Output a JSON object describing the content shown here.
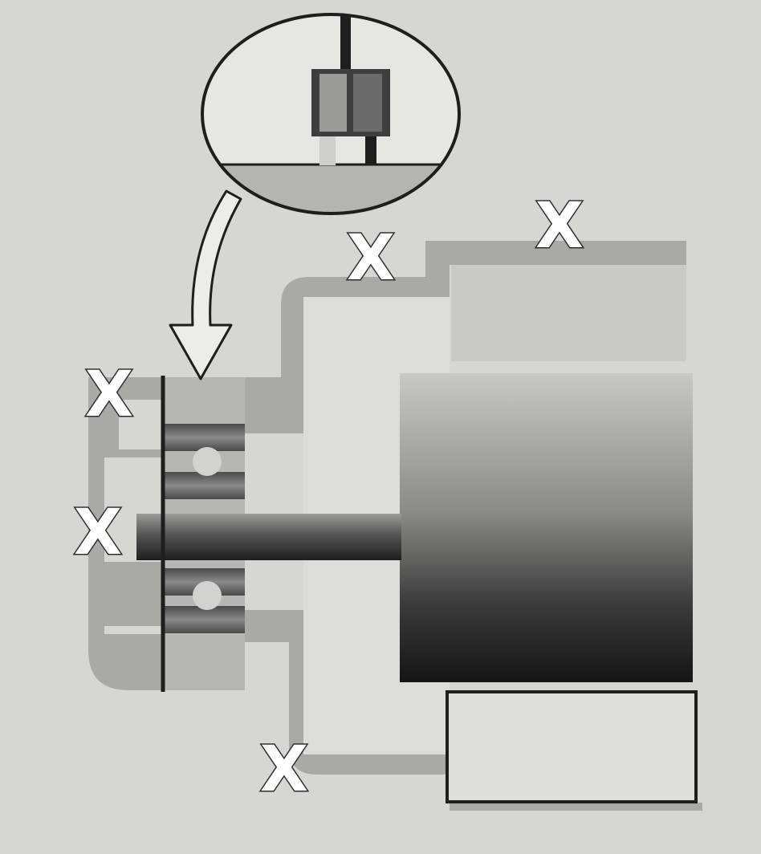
{
  "diagram": {
    "markers": [
      {
        "id": "marker-top-right",
        "label": "X"
      },
      {
        "id": "marker-top-center",
        "label": "X"
      },
      {
        "id": "marker-left-upper",
        "label": "X"
      },
      {
        "id": "marker-left-shaft",
        "label": "X"
      },
      {
        "id": "marker-bottom",
        "label": "X"
      }
    ],
    "colors": {
      "background": "#d6d6d3",
      "frame": "#a9a9a6",
      "inner_fill": "#dcdcd8",
      "bearing": "#6e6e6e",
      "shaft": "#3a3a3a",
      "rotor_top": "#c8c8c5",
      "rotor_bottom": "#151515",
      "outline": "#1e1e1e"
    },
    "icons": [
      "bearing-detail-icon",
      "curved-arrow-icon"
    ]
  }
}
